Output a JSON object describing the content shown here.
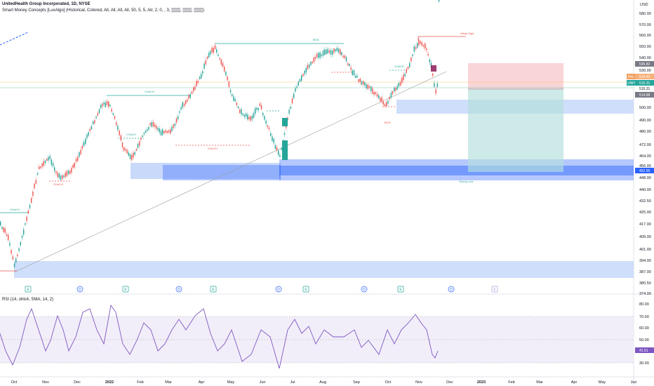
{
  "header": {
    "symbol_line": "UnitedHealth Group Incorporated, 1D, NYSE",
    "indicator_line": "Smart Money Concepts [LuxAlgo] (Historical, Colored, All, All, All, All, 50, 5, 5, Atr, 2, 0, , 3, ▒▒▒, ▒▒▒, ▒▒▒)"
  },
  "price_axis": {
    "currency": "USD",
    "ticks": [
      "580.00",
      "570.00",
      "560.00",
      "550.00",
      "540.00",
      "530.00",
      "500.00",
      "490.00",
      "480.00",
      "472.00",
      "464.00",
      "456.00",
      "448.00",
      "440.00",
      "432.50",
      "425.00",
      "417.00",
      "409.00",
      "401.00",
      "394.00",
      "387.00",
      "380.50",
      "374.00"
    ],
    "badges": {
      "pre_label": "Pre",
      "pre_value": "519.40",
      "unh_label": "UNH",
      "unh_value": "515.31",
      "top_value": "535.82",
      "low_value": "514.88",
      "mid_value": "515.31",
      "zone_value": "452.95"
    }
  },
  "time_axis": {
    "labels": [
      "Oct",
      "Nov",
      "Dec",
      "2022",
      "Feb",
      "Mar",
      "Apr",
      "May",
      "Jun",
      "Jul",
      "Aug",
      "Sep",
      "Oct",
      "Nov",
      "Dec",
      "2023",
      "Feb",
      "Mar",
      "Apr",
      "May",
      "Jun"
    ]
  },
  "event_markers": [
    "E",
    "D",
    "E",
    "D",
    "E",
    "D",
    "E",
    "D",
    "E",
    "D",
    "E"
  ],
  "chart_labels": {
    "bos_top": "BOS",
    "strong_high": "Weak High",
    "strong_low": "Strong Low",
    "choch": "CHoCH",
    "bos": "BOS"
  },
  "rsi": {
    "label": "RSI (14, ohlc4, SMA, 14, 2)",
    "ticks": [
      "80.00",
      "70.00",
      "60.00",
      "50.00",
      "40.00",
      "30.00"
    ],
    "value": "41.51"
  },
  "colors": {
    "up": "#26a69a",
    "down": "#ef5350",
    "zone_blue": "#2962ff",
    "zone_light": "#bbd0f8",
    "rsi_line": "#7e57c2",
    "rsi_band": "#ede7f6"
  }
}
